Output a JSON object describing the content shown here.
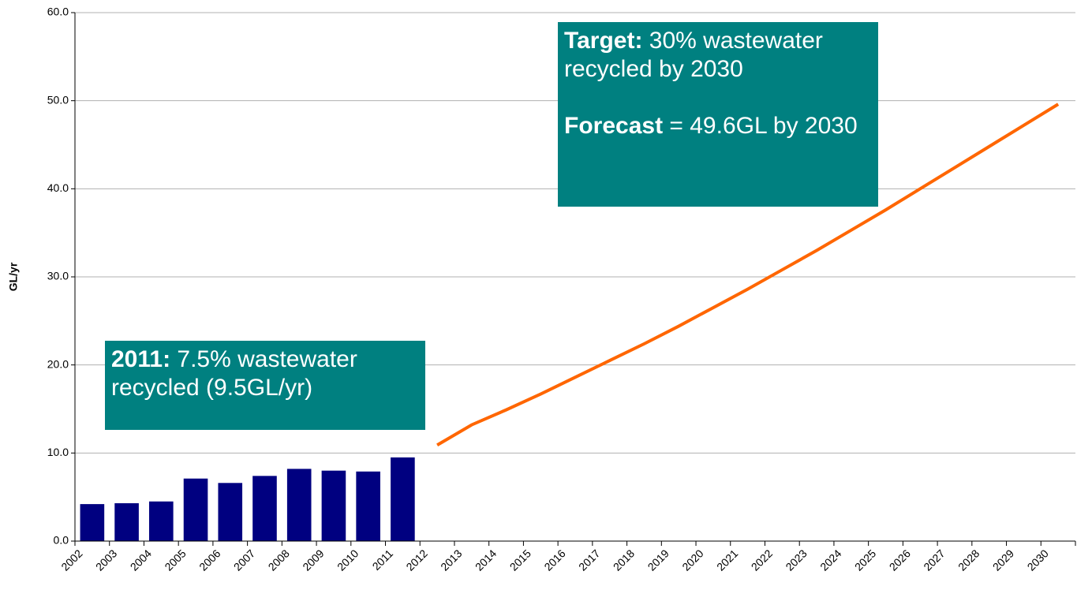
{
  "chart_data": {
    "type": "combo",
    "y_label": "GL/yr",
    "categories": [
      "2002",
      "2003",
      "2004",
      "2005",
      "2006",
      "2007",
      "2008",
      "2009",
      "2010",
      "2011",
      "2012",
      "2013",
      "2014",
      "2015",
      "2016",
      "2017",
      "2018",
      "2019",
      "2020",
      "2021",
      "2022",
      "2023",
      "2024",
      "2025",
      "2026",
      "2027",
      "2028",
      "2029",
      "2030"
    ],
    "series": [
      {
        "type": "bar",
        "color": "#000080",
        "values": [
          4.2,
          4.3,
          4.5,
          7.1,
          6.6,
          7.4,
          8.2,
          8.0,
          7.9,
          9.5,
          null,
          null,
          null,
          null,
          null,
          null,
          null,
          null,
          null,
          null,
          null,
          null,
          null,
          null,
          null,
          null,
          null,
          null,
          null
        ]
      },
      {
        "type": "line",
        "color": "#ff6600",
        "values": [
          null,
          null,
          null,
          null,
          null,
          null,
          null,
          null,
          null,
          null,
          10.9,
          13.2,
          14.9,
          16.7,
          18.6,
          20.5,
          22.4,
          24.4,
          26.5,
          28.6,
          30.8,
          33.0,
          35.3,
          37.6,
          40.0,
          42.4,
          44.8,
          47.2,
          49.6
        ]
      }
    ],
    "ylim": [
      0,
      60
    ],
    "yticks": [
      {
        "value": 0,
        "label": "0.0"
      },
      {
        "value": 10,
        "label": "10.0"
      },
      {
        "value": 20,
        "label": "20.0"
      },
      {
        "value": 30,
        "label": "30.0"
      },
      {
        "value": 40,
        "label": "40.0"
      },
      {
        "value": 50,
        "label": "50.0"
      },
      {
        "value": 60,
        "label": "60.0"
      }
    ],
    "grid": true,
    "annotations": [
      {
        "color": "#008080",
        "paragraphs": [
          {
            "bold": "Target:",
            "text": " 30% wastewater recycled by 2030"
          },
          {
            "bold": "Forecast",
            "text": " = 49.6GL by 2030"
          }
        ]
      },
      {
        "color": "#008080",
        "paragraphs": [
          {
            "bold": "2011:",
            "text": " 7.5% wastewater recycled (9.5GL/yr)"
          }
        ]
      }
    ]
  }
}
